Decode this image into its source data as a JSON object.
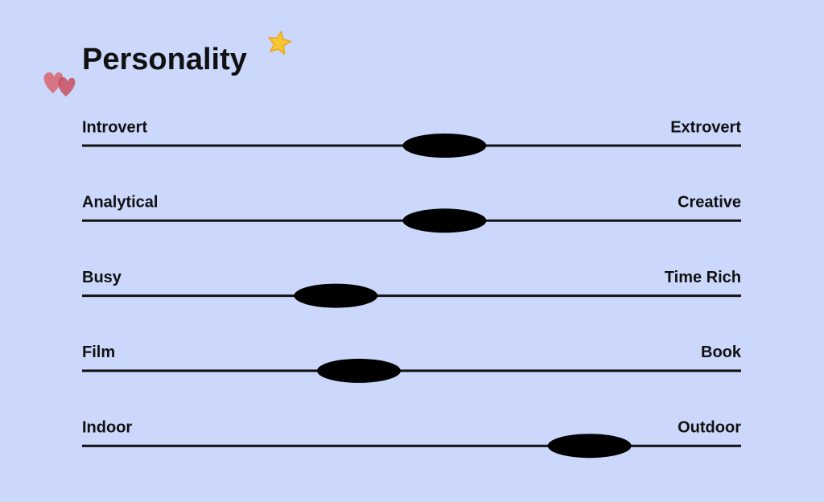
{
  "title": "Personality",
  "traits": [
    {
      "left": "Introvert",
      "right": "Extrovert",
      "position": 0.55
    },
    {
      "left": "Analytical",
      "right": "Creative",
      "position": 0.55
    },
    {
      "left": "Busy",
      "right": "Time Rich",
      "position": 0.385
    },
    {
      "left": "Film",
      "right": "Book",
      "position": 0.42
    },
    {
      "left": "Indoor",
      "right": "Outdoor",
      "position": 0.77
    }
  ]
}
